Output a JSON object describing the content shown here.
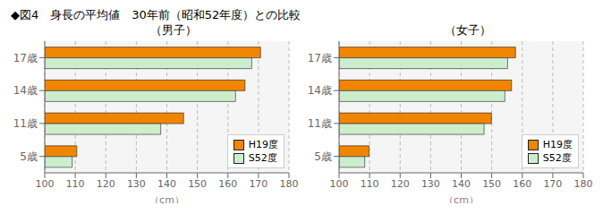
{
  "title": "◆図4　身長の平均値　30年前（昭和52年度）との比較",
  "chart_data": [
    {
      "type": "bar",
      "orientation": "horizontal",
      "title": "（男子）",
      "categories": [
        "5歳",
        "11歳",
        "14歳",
        "17歳"
      ],
      "series": [
        {
          "name": "H19度",
          "color": "#F28500",
          "values": [
            110.5,
            145.5,
            165.6,
            170.7
          ]
        },
        {
          "name": "S52度",
          "color": "#CCEECC",
          "values": [
            109.0,
            138.0,
            162.5,
            167.8
          ]
        }
      ],
      "xlim": [
        100,
        180
      ],
      "xticks": [
        100,
        110,
        120,
        130,
        140,
        150,
        160,
        170,
        180
      ],
      "xlabel": "（cm）",
      "grid": true,
      "legend": "lower right"
    },
    {
      "type": "bar",
      "orientation": "horizontal",
      "title": "（女子）",
      "categories": [
        "5歳",
        "11歳",
        "14歳",
        "17歳"
      ],
      "series": [
        {
          "name": "H19度",
          "color": "#F28500",
          "values": [
            109.8,
            149.9,
            156.5,
            157.8
          ]
        },
        {
          "name": "S52度",
          "color": "#CCEECC",
          "values": [
            108.4,
            147.5,
            154.3,
            155.2
          ]
        }
      ],
      "xlim": [
        100,
        180
      ],
      "xticks": [
        100,
        110,
        120,
        130,
        140,
        150,
        160,
        170,
        180
      ],
      "xlabel": "（cm）",
      "grid": true,
      "legend": "lower right"
    }
  ]
}
